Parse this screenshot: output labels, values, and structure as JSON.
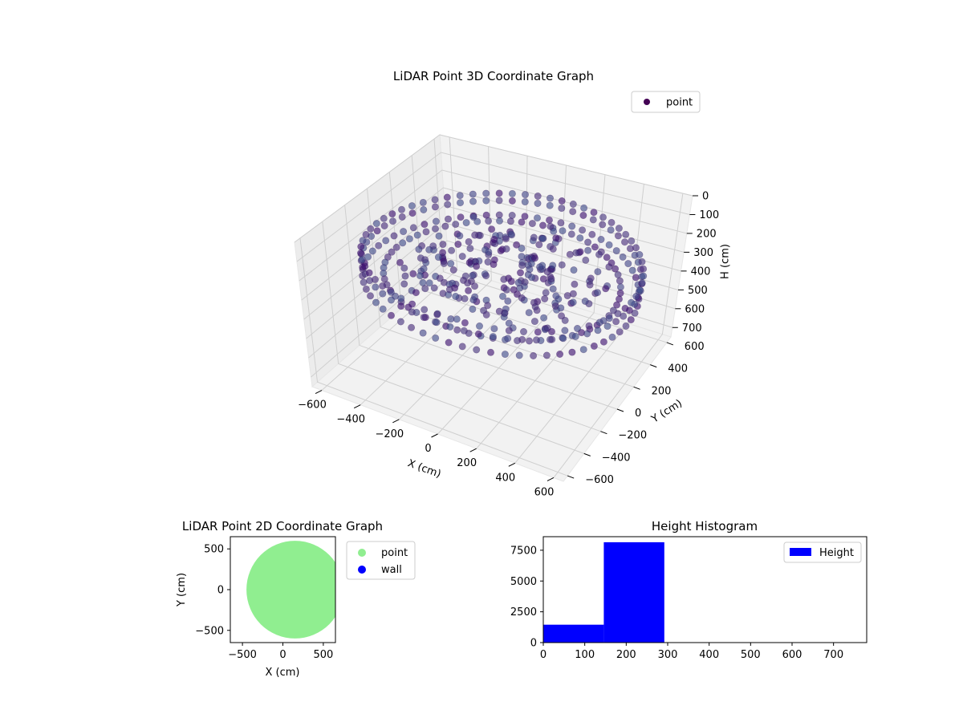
{
  "chart_data": [
    {
      "type": "scatter3d",
      "title": "LiDAR Point 3D Coordinate Graph",
      "xlabel": "X (cm)",
      "ylabel": "Y (cm)",
      "zlabel": "H (cm)",
      "xlim": [
        -650,
        650
      ],
      "ylim": [
        -650,
        650
      ],
      "zlim": [
        0,
        750
      ],
      "z_inverted": true,
      "xticks": [
        -600,
        -400,
        -200,
        0,
        200,
        400,
        600
      ],
      "yticks": [
        -600,
        -400,
        -200,
        0,
        200,
        400,
        600
      ],
      "zticks": [
        0,
        100,
        200,
        300,
        400,
        500,
        600,
        700
      ],
      "grid": true,
      "legend": {
        "position": "top-right",
        "entries": [
          "point"
        ]
      },
      "series": [
        {
          "name": "point",
          "color": "#440154",
          "shape": "ring-scan",
          "outer_radius": 620,
          "inner_radius": 100,
          "height_range": [
            180,
            300
          ]
        }
      ]
    },
    {
      "type": "scatter",
      "title": "LiDAR Point 2D Coordinate Graph",
      "xlabel": "X (cm)",
      "ylabel": "Y (cm)",
      "xlim": [
        -650,
        650
      ],
      "ylim": [
        -650,
        650
      ],
      "xticks": [
        -500,
        0,
        500
      ],
      "yticks": [
        -500,
        0,
        500
      ],
      "legend": {
        "position": "outside-right",
        "entries": [
          "point",
          "wall"
        ]
      },
      "series": [
        {
          "name": "point",
          "color": "#90ee90",
          "shape": "disc",
          "center": [
            150,
            0
          ],
          "radius": 600
        },
        {
          "name": "wall",
          "color": "#0000ff"
        }
      ]
    },
    {
      "type": "histogram",
      "title": "Height Histogram",
      "xlim": [
        0,
        780
      ],
      "ylim": [
        0,
        8600
      ],
      "xticks": [
        0,
        100,
        200,
        300,
        400,
        500,
        600,
        700
      ],
      "yticks": [
        0,
        2500,
        5000,
        7500
      ],
      "bin_edges": [
        0,
        146,
        292,
        438,
        584,
        730
      ],
      "counts": [
        1450,
        8150,
        0,
        0,
        0
      ],
      "color": "#0000ff",
      "legend": {
        "position": "top-right",
        "entries": [
          "Height"
        ]
      }
    }
  ]
}
